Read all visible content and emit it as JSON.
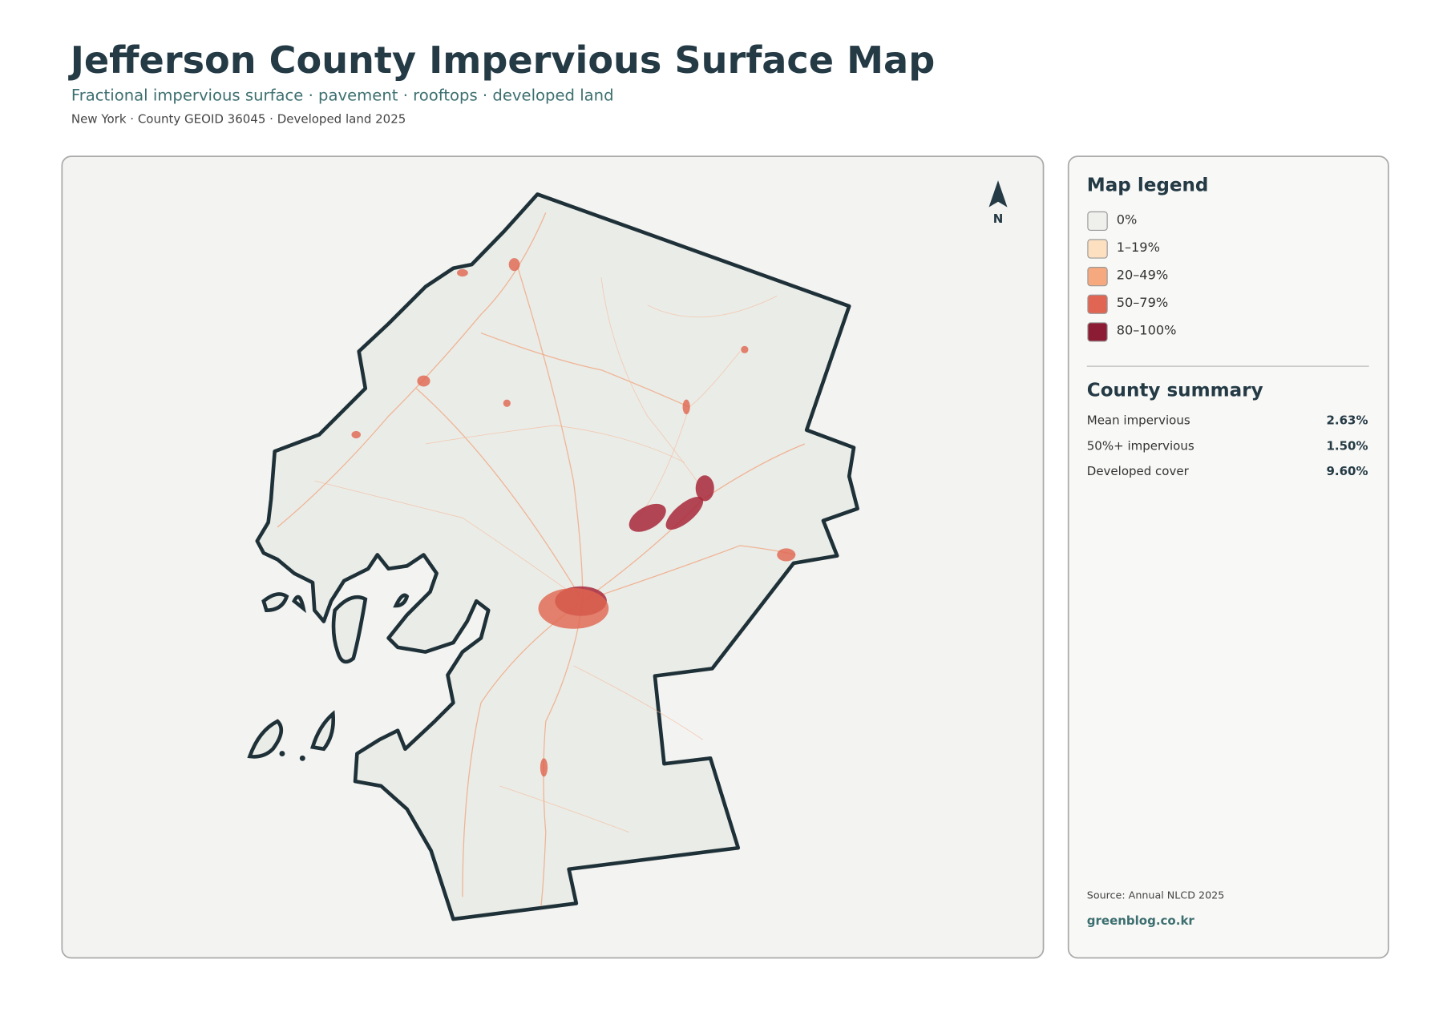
{
  "header": {
    "title": "Jefferson County Impervious Surface Map",
    "subtitle": "Fractional impervious surface · pavement · rooftops · developed land",
    "meta": "New York · County GEOID 36045 · Developed land 2025"
  },
  "map": {
    "north_label": "N"
  },
  "legend": {
    "title": "Map legend",
    "items": [
      {
        "label": "0%",
        "color": "#efefec"
      },
      {
        "label": "1–19%",
        "color": "#fde0c0"
      },
      {
        "label": "20–49%",
        "color": "#f6a97e"
      },
      {
        "label": "50–79%",
        "color": "#e06552"
      },
      {
        "label": "80–100%",
        "color": "#8c1c33"
      }
    ]
  },
  "summary": {
    "title": "County summary",
    "rows": [
      {
        "label": "Mean impervious",
        "value": "2.63%"
      },
      {
        "label": "50%+ impervious",
        "value": "1.50%"
      },
      {
        "label": "Developed cover",
        "value": "9.60%"
      }
    ]
  },
  "footer": {
    "source": "Source: Annual NLCD 2025",
    "site": "greenblog.co.kr"
  }
}
